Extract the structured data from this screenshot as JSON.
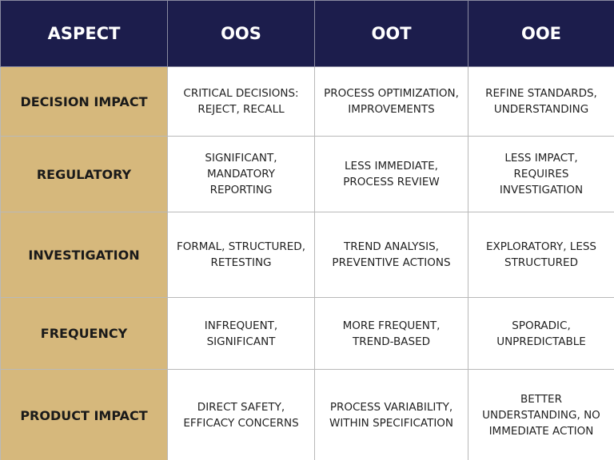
{
  "table": {
    "header": [
      "ASPECT",
      "OOS",
      "OOT",
      "OOE"
    ],
    "rows": [
      {
        "aspect": "DECISION IMPACT",
        "cells": [
          [
            "CRITICAL DECISIONS:",
            "REJECT, RECALL"
          ],
          [
            "PROCESS OPTIMIZATION,",
            "IMPROVEMENTS"
          ],
          [
            "REFINE STANDARDS,",
            "UNDERSTANDING"
          ]
        ]
      },
      {
        "aspect": "REGULATORY",
        "cells": [
          [
            "SIGNIFICANT,",
            "MANDATORY",
            "REPORTING"
          ],
          [
            "LESS IMMEDIATE,",
            "PROCESS REVIEW"
          ],
          [
            "LESS IMPACT,",
            "REQUIRES",
            "INVESTIGATION"
          ]
        ]
      },
      {
        "aspect": "INVESTIGATION",
        "cells": [
          [
            "FORMAL, STRUCTURED,",
            "RETESTING"
          ],
          [
            "TREND ANALYSIS,",
            "PREVENTIVE ACTIONS"
          ],
          [
            "EXPLORATORY, LESS",
            "STRUCTURED"
          ]
        ]
      },
      {
        "aspect": "FREQUENCY",
        "cells": [
          [
            "INFREQUENT,",
            "SIGNIFICANT"
          ],
          [
            "MORE FREQUENT,",
            "TREND-BASED"
          ],
          [
            "SPORADIC,",
            "UNPREDICTABLE"
          ]
        ]
      },
      {
        "aspect": "PRODUCT IMPACT",
        "cells": [
          [
            "DIRECT SAFETY,",
            "EFFICACY CONCERNS"
          ],
          [
            "PROCESS VARIABILITY,",
            "WITHIN SPECIFICATION"
          ],
          [
            "BETTER",
            "UNDERSTANDING, NO",
            "IMMEDIATE ACTION"
          ]
        ]
      }
    ]
  }
}
